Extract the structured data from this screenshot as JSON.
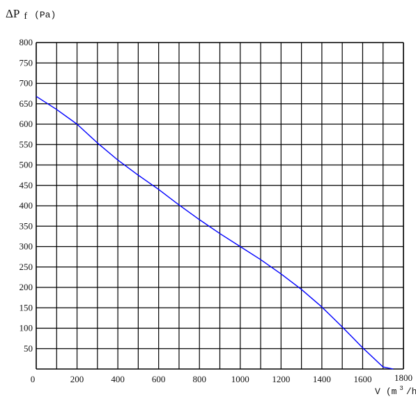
{
  "chart_data": {
    "type": "line",
    "ylabel": {
      "delta": "ΔP",
      "sub": "f",
      "unit": "(Pa)"
    },
    "xlabel": {
      "var": "V",
      "unit_open": "(m",
      "sup": "3",
      "unit_close": "/h"
    },
    "xlim": [
      0,
      1800
    ],
    "ylim": [
      0,
      800
    ],
    "x_ticks": [
      "0",
      "200",
      "400",
      "600",
      "800",
      "1000",
      "1200",
      "1400",
      "1600",
      "1800"
    ],
    "y_ticks": [
      "50",
      "100",
      "150",
      "200",
      "250",
      "300",
      "350",
      "400",
      "450",
      "500",
      "550",
      "600",
      "650",
      "700",
      "750",
      "800"
    ],
    "grid": true,
    "series": [
      {
        "color": "#0000ff",
        "x": [
          0,
          100,
          200,
          300,
          400,
          500,
          600,
          700,
          800,
          900,
          1000,
          1100,
          1200,
          1300,
          1400,
          1500,
          1600,
          1700,
          1750
        ],
        "y": [
          668,
          636,
          600,
          554,
          512,
          475,
          440,
          402,
          366,
          332,
          300,
          268,
          233,
          195,
          152,
          103,
          52,
          5,
          0
        ]
      }
    ]
  }
}
